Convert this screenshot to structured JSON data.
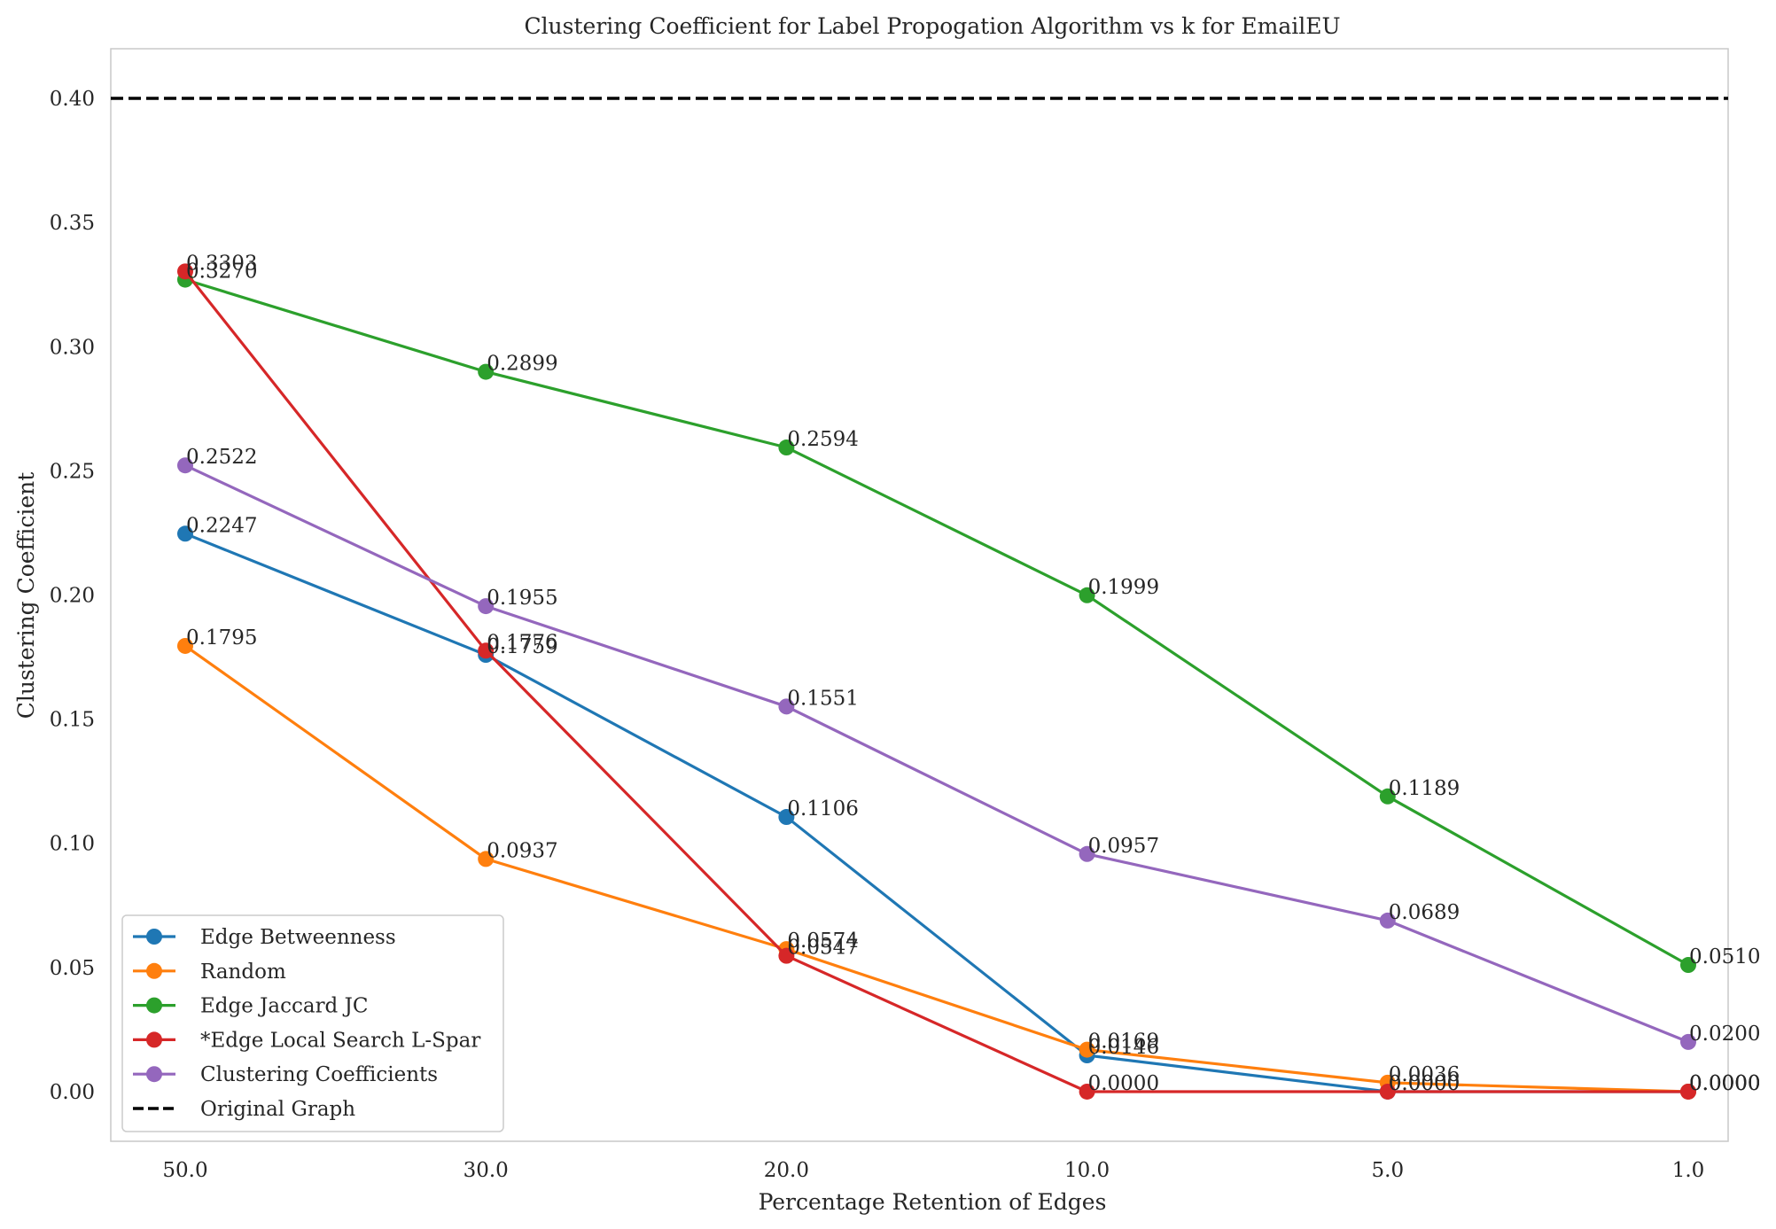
{
  "chart_data": {
    "type": "line",
    "title": "Clustering Coefficient for Label Propogation Algorithm vs k for EmailEU",
    "xlabel": "Percentage Retention of Edges",
    "ylabel": "Clustering Coefficient",
    "categories": [
      "50.0",
      "30.0",
      "20.0",
      "10.0",
      "5.0",
      "1.0"
    ],
    "ylim": [
      -0.02,
      0.42
    ],
    "yticks": [
      "0.00",
      "0.05",
      "0.10",
      "0.15",
      "0.20",
      "0.25",
      "0.30",
      "0.35",
      "0.40"
    ],
    "grid": false,
    "legend_position": "lower-left",
    "series": [
      {
        "name": "Edge Betweenness",
        "color": "#1f77b4",
        "values": [
          0.2247,
          0.1759,
          0.1106,
          0.0146,
          0.0,
          0.0
        ],
        "labels": [
          "0.2247",
          "0.1759",
          "0.1106",
          "0.0146",
          "0.0000",
          "0.0000"
        ]
      },
      {
        "name": "Random",
        "color": "#ff7f0e",
        "values": [
          0.1795,
          0.0937,
          0.0574,
          0.0169,
          0.0036,
          0.0
        ],
        "labels": [
          "0.1795",
          "0.0937",
          "0.0574",
          "0.0169",
          "0.0036",
          "0.0000"
        ]
      },
      {
        "name": "Edge Jaccard JC",
        "color": "#2ca02c",
        "values": [
          0.327,
          0.2899,
          0.2594,
          0.1999,
          0.1189,
          0.051
        ],
        "labels": [
          "0.3270",
          "0.2899",
          "0.2594",
          "0.1999",
          "0.1189",
          "0.0510"
        ]
      },
      {
        "name": "*Edge Local Search L-Spar",
        "color": "#d62728",
        "values": [
          0.3303,
          0.1776,
          0.0547,
          0.0,
          0.0,
          0.0
        ],
        "labels": [
          "0.3303",
          "0.1776",
          "0.0547",
          "0.0000",
          "0.0000",
          "0.0000"
        ]
      },
      {
        "name": "Clustering Coefficients",
        "color": "#9467bd",
        "values": [
          0.2522,
          0.1955,
          0.1551,
          0.0957,
          0.0689,
          0.02
        ],
        "labels": [
          "0.2522",
          "0.1955",
          "0.1551",
          "0.0957",
          "0.0689",
          "0.0200"
        ]
      }
    ],
    "reference_lines": [
      {
        "name": "Original Graph",
        "value": 0.4,
        "color": "#000000",
        "style": "dashed"
      }
    ]
  }
}
